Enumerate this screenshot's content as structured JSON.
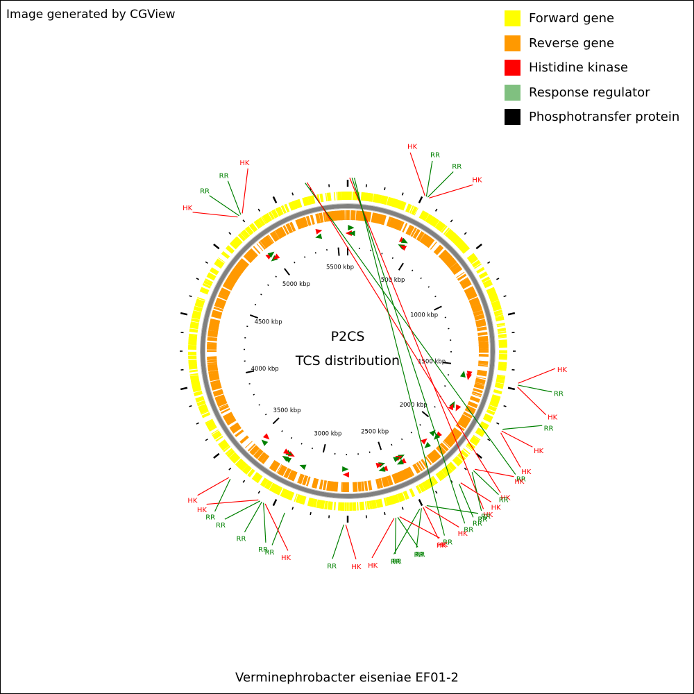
{
  "credit": "Image generated by CGView",
  "legend": [
    {
      "label": "Forward gene",
      "color": "#ffff00"
    },
    {
      "label": "Reverse gene",
      "color": "#ff9900"
    },
    {
      "label": "Histidine kinase",
      "color": "#ff0000"
    },
    {
      "label": "Response regulator",
      "color": "#80c080"
    },
    {
      "label": "Phosphotransfer protein",
      "color": "#000000"
    }
  ],
  "center_title": "P2CS",
  "center_subtitle": "TCS distribution",
  "caption": "Verminephrobacter eiseniae EF01-2",
  "colors": {
    "forward": "#ffff00",
    "reverse": "#ff9900",
    "backbone": "#808080",
    "hk": "#ff0000",
    "rr": "#008000",
    "pt": "#000000"
  },
  "chart_data": {
    "type": "circular-genome-map",
    "genome_size_kbp": 5580,
    "ruler_labels": [
      {
        "kbp": 500,
        "label": "500 kbp"
      },
      {
        "kbp": 1000,
        "label": "1000 kbp"
      },
      {
        "kbp": 1500,
        "label": "1500 kbp"
      },
      {
        "kbp": 2000,
        "label": "2000 kbp"
      },
      {
        "kbp": 2500,
        "label": "2500 kbp"
      },
      {
        "kbp": 3000,
        "label": "3000 kbp"
      },
      {
        "kbp": 3500,
        "label": "3500 kbp"
      },
      {
        "kbp": 4000,
        "label": "4000 kbp"
      },
      {
        "kbp": 4500,
        "label": "4500 kbp"
      },
      {
        "kbp": 5000,
        "label": "5000 kbp"
      },
      {
        "kbp": 5500,
        "label": "5500 kbp"
      }
    ],
    "features": [
      {
        "kbp": 5360,
        "label": "RR",
        "type": "rr"
      },
      {
        "kbp": 5370,
        "label": "HK",
        "type": "hk"
      },
      {
        "kbp": 10,
        "label": "HK",
        "type": "hk"
      },
      {
        "kbp": 22,
        "label": "RR",
        "type": "rr"
      },
      {
        "kbp": 34,
        "label": "RR",
        "type": "rr"
      },
      {
        "kbp": 410,
        "label": "HK",
        "type": "hk"
      },
      {
        "kbp": 418,
        "label": "RR",
        "type": "rr"
      },
      {
        "kbp": 426,
        "label": "RR",
        "type": "rr"
      },
      {
        "kbp": 434,
        "label": "HK",
        "type": "hk"
      },
      {
        "kbp": 1560,
        "label": "HK",
        "type": "hk"
      },
      {
        "kbp": 1570,
        "label": "RR",
        "type": "rr"
      },
      {
        "kbp": 1580,
        "label": "HK",
        "type": "hk"
      },
      {
        "kbp": 1810,
        "label": "RR",
        "type": "rr"
      },
      {
        "kbp": 1820,
        "label": "HK",
        "type": "hk"
      },
      {
        "kbp": 1830,
        "label": "HK",
        "type": "hk"
      },
      {
        "kbp": 2060,
        "label": "HK",
        "type": "hk"
      },
      {
        "kbp": 2070,
        "label": "RR",
        "type": "rr"
      },
      {
        "kbp": 2080,
        "label": "RR",
        "type": "rr"
      },
      {
        "kbp": 2160,
        "label": "HK",
        "type": "hk"
      },
      {
        "kbp": 2170,
        "label": "RR",
        "type": "rr"
      },
      {
        "kbp": 2370,
        "label": "RR",
        "type": "rr"
      },
      {
        "kbp": 2380,
        "label": "HK",
        "type": "hk"
      },
      {
        "kbp": 2390,
        "label": "HK",
        "type": "hk"
      },
      {
        "kbp": 2400,
        "label": "RR",
        "type": "rr"
      },
      {
        "kbp": 2410,
        "label": "RR",
        "type": "rr"
      },
      {
        "kbp": 2520,
        "label": "HK",
        "type": "hk"
      },
      {
        "kbp": 2530,
        "label": "RR",
        "type": "rr"
      },
      {
        "kbp": 2540,
        "label": "RR",
        "type": "rr"
      },
      {
        "kbp": 2550,
        "label": "HK",
        "type": "hk"
      },
      {
        "kbp": 2800,
        "label": "HK",
        "type": "hk"
      },
      {
        "kbp": 2810,
        "label": "RR",
        "type": "rr"
      },
      {
        "kbp": 3120,
        "label": "RR",
        "type": "rr"
      },
      {
        "kbp": 3230,
        "label": "HK",
        "type": "hk"
      },
      {
        "kbp": 3240,
        "label": "RR",
        "type": "rr"
      },
      {
        "kbp": 3250,
        "label": "RR",
        "type": "rr"
      },
      {
        "kbp": 3260,
        "label": "RR",
        "type": "rr"
      },
      {
        "kbp": 3270,
        "label": "HK",
        "type": "hk"
      },
      {
        "kbp": 3450,
        "label": "RR",
        "type": "rr"
      },
      {
        "kbp": 3460,
        "label": "HK",
        "type": "hk"
      },
      {
        "kbp": 4970,
        "label": "HK",
        "type": "hk"
      },
      {
        "kbp": 4980,
        "label": "RR",
        "type": "rr"
      },
      {
        "kbp": 4990,
        "label": "RR",
        "type": "rr"
      },
      {
        "kbp": 5000,
        "label": "HK",
        "type": "hk"
      }
    ]
  }
}
